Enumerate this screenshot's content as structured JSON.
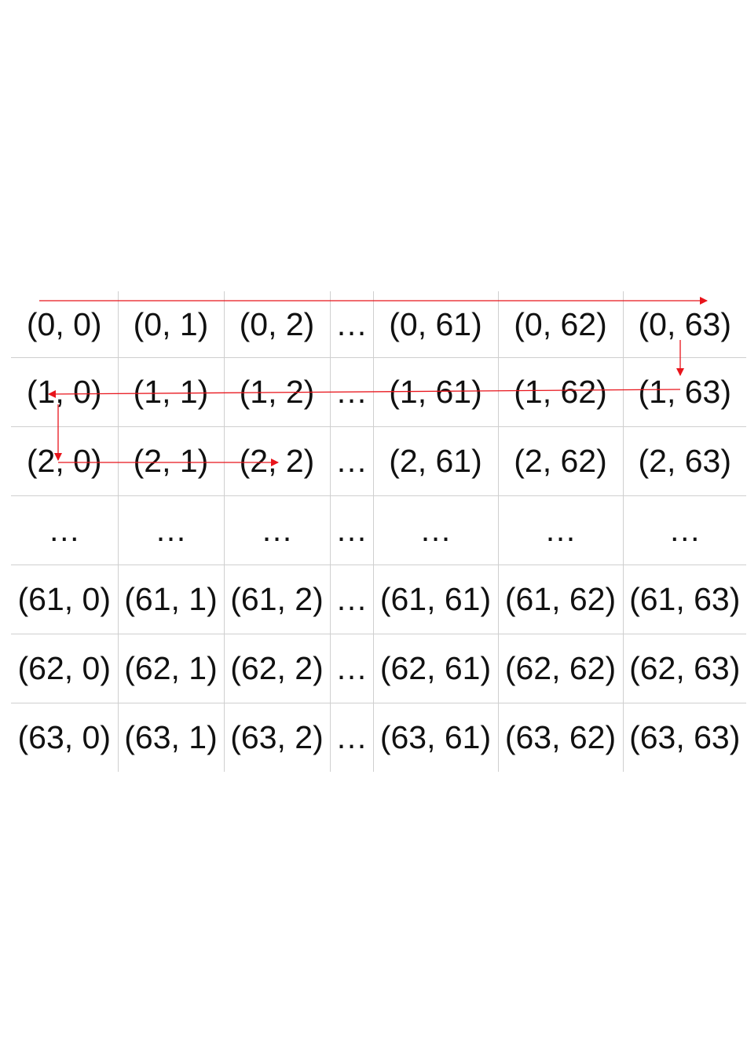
{
  "grid": {
    "rows": [
      [
        "(0, 0)",
        "(0, 1)",
        "(0, 2)",
        "…",
        "(0, 61)",
        "(0, 62)",
        "(0, 63)"
      ],
      [
        "(1, 0)",
        "(1, 1)",
        "(1, 2)",
        "…",
        "(1, 61)",
        "(1, 62)",
        "(1, 63)"
      ],
      [
        "(2, 0)",
        "(2, 1)",
        "(2, 2)",
        "…",
        "(2, 61)",
        "(2, 62)",
        "(2, 63)"
      ],
      [
        "…",
        "…",
        "…",
        "…",
        "…",
        "…",
        "…"
      ],
      [
        "(61, 0)",
        "(61, 1)",
        "(61, 2)",
        "…",
        "(61, 61)",
        "(61, 62)",
        "(61, 63)"
      ],
      [
        "(62, 0)",
        "(62, 1)",
        "(62, 2)",
        "…",
        "(62, 61)",
        "(62, 62)",
        "(62, 63)"
      ],
      [
        "(63, 0)",
        "(63, 1)",
        "(63, 2)",
        "…",
        "(63, 61)",
        "(63, 62)",
        "(63, 63)"
      ]
    ]
  },
  "arrows": {
    "color": "#e8141b"
  }
}
